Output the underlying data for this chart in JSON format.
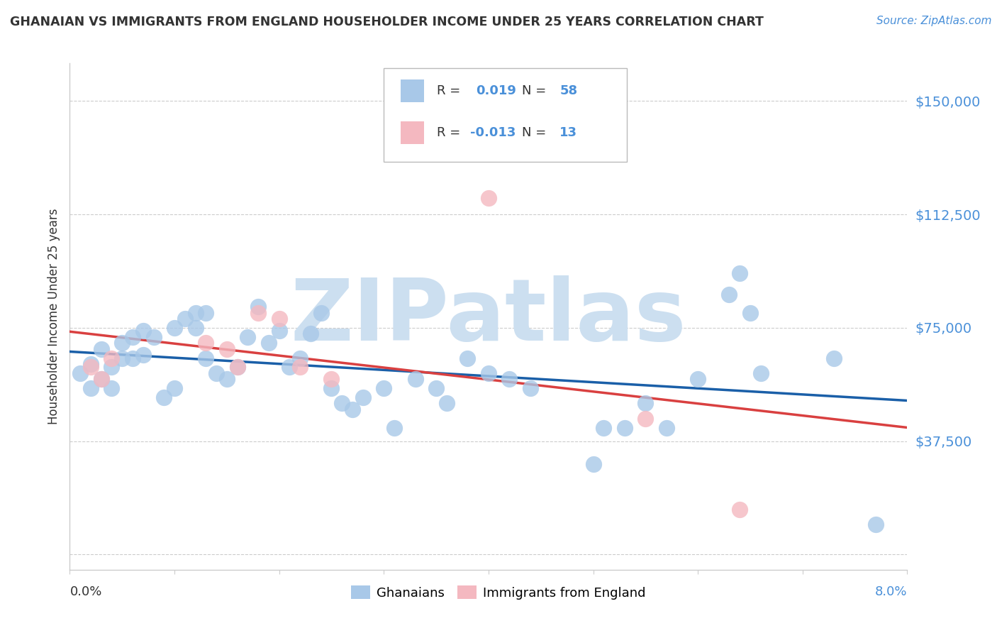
{
  "title": "GHANAIAN VS IMMIGRANTS FROM ENGLAND HOUSEHOLDER INCOME UNDER 25 YEARS CORRELATION CHART",
  "source": "Source: ZipAtlas.com",
  "ylabel": "Householder Income Under 25 years",
  "legend_label1": "Ghanaians",
  "legend_label2": "Immigrants from England",
  "watermark": "ZIPatlas",
  "yticks": [
    0,
    37500,
    75000,
    112500,
    150000
  ],
  "ylim": [
    -5000,
    162500
  ],
  "xlim": [
    0.0,
    0.08
  ],
  "blue_color": "#a8c8e8",
  "pink_color": "#f4b8c0",
  "blue_line_color": "#1a5fa8",
  "pink_line_color": "#d94040",
  "title_color": "#333333",
  "axis_value_color": "#4a90d9",
  "watermark_color": "#ccdff0",
  "grid_color": "#cccccc",
  "blue_dots_x": [
    0.001,
    0.002,
    0.002,
    0.003,
    0.003,
    0.004,
    0.004,
    0.005,
    0.005,
    0.006,
    0.006,
    0.007,
    0.007,
    0.008,
    0.009,
    0.01,
    0.01,
    0.011,
    0.012,
    0.012,
    0.013,
    0.014,
    0.015,
    0.016,
    0.017,
    0.018,
    0.019,
    0.02,
    0.021,
    0.022,
    0.023,
    0.024,
    0.025,
    0.026,
    0.027,
    0.028,
    0.03,
    0.031,
    0.033,
    0.035,
    0.036,
    0.038,
    0.04,
    0.042,
    0.044,
    0.05,
    0.051,
    0.053,
    0.055,
    0.057,
    0.06,
    0.063,
    0.064,
    0.065,
    0.066,
    0.073,
    0.077,
    0.013
  ],
  "blue_dots_y": [
    60000,
    55000,
    63000,
    58000,
    68000,
    62000,
    55000,
    65000,
    70000,
    72000,
    65000,
    74000,
    66000,
    72000,
    52000,
    75000,
    55000,
    78000,
    80000,
    75000,
    80000,
    60000,
    58000,
    62000,
    72000,
    82000,
    70000,
    74000,
    62000,
    65000,
    73000,
    80000,
    55000,
    50000,
    48000,
    52000,
    55000,
    42000,
    58000,
    55000,
    50000,
    65000,
    60000,
    58000,
    55000,
    30000,
    42000,
    42000,
    50000,
    42000,
    58000,
    86000,
    93000,
    80000,
    60000,
    65000,
    10000,
    65000
  ],
  "pink_dots_x": [
    0.002,
    0.003,
    0.004,
    0.013,
    0.015,
    0.016,
    0.018,
    0.02,
    0.022,
    0.025,
    0.04,
    0.055,
    0.064
  ],
  "pink_dots_y": [
    62000,
    58000,
    65000,
    70000,
    68000,
    62000,
    80000,
    78000,
    62000,
    58000,
    118000,
    45000,
    15000
  ],
  "blue_r": 0.019,
  "pink_r": -0.013,
  "blue_n": 58,
  "pink_n": 13
}
